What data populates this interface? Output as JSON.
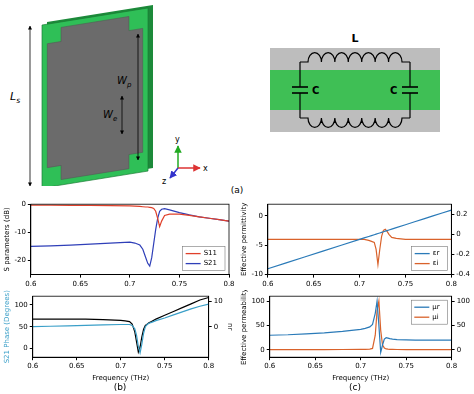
{
  "panels": {
    "a": "(a)",
    "b": "(b)",
    "c": "(c)"
  },
  "diagram": {
    "unit_cell": {
      "dimensions": [
        "Ls",
        "Wp",
        "We"
      ],
      "axes": [
        "y",
        "x",
        "z"
      ]
    },
    "circuit": {
      "inductor": "L",
      "capacitors": [
        "C",
        "C"
      ]
    }
  },
  "chart_data": [
    {
      "type": "line",
      "ylabel": "S parameters (dB)",
      "x": [
        0.6,
        0.62,
        0.64,
        0.66,
        0.68,
        0.7,
        0.705,
        0.71,
        0.713,
        0.716,
        0.718,
        0.72,
        0.722,
        0.724,
        0.726,
        0.728,
        0.73,
        0.732,
        0.735,
        0.74,
        0.75,
        0.76,
        0.77,
        0.78,
        0.79,
        0.8
      ],
      "xlim": [
        0.6,
        0.8
      ],
      "xticks": [
        0.6,
        0.65,
        0.7,
        0.75,
        0.8
      ],
      "ylim": [
        -25,
        0
      ],
      "yticks": [
        -20,
        -10,
        0
      ],
      "grid": false,
      "legend": "lower right",
      "series": [
        {
          "name": "S11",
          "color": "#e0402a",
          "values": [
            -0.3,
            -0.3,
            -0.4,
            -0.4,
            -0.5,
            -0.6,
            -0.7,
            -0.8,
            -0.9,
            -1.0,
            -1.0,
            -1.1,
            -1.2,
            -1.5,
            -2.5,
            -5,
            -8,
            -6,
            -4,
            -3.5,
            -3.5,
            -4,
            -4.5,
            -5,
            -5.5,
            -6
          ]
        },
        {
          "name": "S21",
          "color": "#2f3fb8",
          "values": [
            -15,
            -14.8,
            -14.5,
            -14.2,
            -13.8,
            -13.5,
            -13.8,
            -14.5,
            -16,
            -19,
            -21,
            -22,
            -19,
            -14,
            -9,
            -5,
            -2.5,
            -1.8,
            -1.6,
            -2,
            -3,
            -3.8,
            -4.5,
            -5,
            -5.5,
            -6
          ]
        }
      ]
    },
    {
      "type": "line",
      "xlabel": "Frequency (THz)",
      "ylabel": "S21 Phase (Degrees)",
      "y2label": "nr",
      "x": [
        0.6,
        0.62,
        0.64,
        0.66,
        0.68,
        0.7,
        0.705,
        0.71,
        0.713,
        0.716,
        0.718,
        0.72,
        0.722,
        0.724,
        0.726,
        0.728,
        0.73,
        0.732,
        0.735,
        0.74,
        0.75,
        0.76,
        0.77,
        0.78,
        0.79,
        0.8
      ],
      "xlim": [
        0.6,
        0.8
      ],
      "xticks": [
        0.6,
        0.65,
        0.7,
        0.75,
        0.8
      ],
      "ylim": [
        -20,
        120
      ],
      "yticks": [
        0,
        50,
        100
      ],
      "y2lim": [
        -12,
        12
      ],
      "y2ticks": [
        0,
        10
      ],
      "grid": false,
      "series": [
        {
          "color": "#3a9fc8",
          "values": [
            50,
            51,
            52,
            53,
            54,
            55,
            55,
            55,
            53,
            45,
            30,
            5,
            -10,
            10,
            35,
            50,
            55,
            58,
            60,
            64,
            70,
            77,
            84,
            91,
            97,
            102
          ]
        },
        {
          "color": "#000000",
          "axis": "y2",
          "values": [
            3,
            3,
            3,
            3,
            2.8,
            2.5,
            2.3,
            2,
            1,
            -2,
            -6,
            -10,
            -8,
            -4,
            -1,
            0.5,
            1,
            1.5,
            2,
            3,
            4.5,
            6,
            7.5,
            9,
            10.5,
            11.5
          ]
        }
      ]
    },
    {
      "type": "line",
      "ylabel": "Effective permittivity",
      "x": [
        0.6,
        0.62,
        0.64,
        0.66,
        0.68,
        0.7,
        0.705,
        0.71,
        0.713,
        0.716,
        0.718,
        0.72,
        0.722,
        0.724,
        0.726,
        0.728,
        0.73,
        0.732,
        0.735,
        0.74,
        0.75,
        0.76,
        0.77,
        0.78,
        0.79,
        0.8
      ],
      "xlim": [
        0.6,
        0.8
      ],
      "xticks": [
        0.6,
        0.65,
        0.7,
        0.75,
        0.8
      ],
      "ylim": [
        -10,
        2
      ],
      "yticks": [
        -10,
        -5,
        0
      ],
      "y2lim": [
        -0.4,
        0.3
      ],
      "y2ticks": [
        -0.4,
        -0.2,
        0,
        0.2
      ],
      "grid": false,
      "legend": "lower right",
      "series": [
        {
          "name": "εr",
          "color": "#2a7ab8",
          "values": [
            -9,
            -8,
            -7,
            -6,
            -5,
            -4,
            -3.75,
            -3.5,
            -3.35,
            -3.2,
            -3.1,
            -3,
            -2.9,
            -2.8,
            -2.7,
            -2.6,
            -2.5,
            -2.4,
            -2.25,
            -2,
            -1.5,
            -1,
            -0.5,
            0,
            0.5,
            1
          ]
        },
        {
          "name": "εi",
          "color": "#d9622b",
          "axis": "y2",
          "values": [
            -0.05,
            -0.05,
            -0.05,
            -0.05,
            -0.05,
            -0.05,
            -0.05,
            -0.06,
            -0.07,
            -0.08,
            -0.15,
            -0.3,
            -0.15,
            -0.02,
            0.04,
            0.05,
            0.03,
            0,
            -0.03,
            -0.04,
            -0.05,
            -0.05,
            -0.05,
            -0.05,
            -0.05,
            -0.05
          ]
        }
      ]
    },
    {
      "type": "line",
      "xlabel": "Frequency (THz)",
      "ylabel": "Effective permeability",
      "x": [
        0.6,
        0.62,
        0.64,
        0.66,
        0.68,
        0.7,
        0.705,
        0.71,
        0.713,
        0.716,
        0.718,
        0.72,
        0.722,
        0.724,
        0.726,
        0.728,
        0.73,
        0.732,
        0.735,
        0.74,
        0.75,
        0.76,
        0.77,
        0.78,
        0.79,
        0.8
      ],
      "xlim": [
        0.6,
        0.8
      ],
      "xticks": [
        0.6,
        0.65,
        0.7,
        0.75,
        0.8
      ],
      "ylim": [
        -15,
        110
      ],
      "yticks": [
        0,
        50,
        100
      ],
      "y2lim": [
        -15,
        110
      ],
      "y2ticks": [
        0,
        50,
        100
      ],
      "grid": false,
      "legend": "upper right",
      "series": [
        {
          "name": "μr",
          "color": "#2a7ab8",
          "values": [
            30,
            31,
            33,
            35,
            38,
            42,
            44,
            47,
            52,
            75,
            100,
            50,
            -5,
            10,
            22,
            25,
            24,
            23,
            22,
            21,
            20.5,
            20,
            20,
            20,
            20,
            20
          ]
        },
        {
          "name": "μi",
          "color": "#d9622b",
          "axis": "y2",
          "values": [
            0.5,
            0.5,
            0.6,
            0.7,
            0.8,
            1,
            1.2,
            1.5,
            3,
            30,
            80,
            100,
            40,
            10,
            4,
            2,
            1.5,
            1.2,
            1,
            0.8,
            0.6,
            0.5,
            0.5,
            0.5,
            0.5,
            0.5
          ]
        }
      ]
    }
  ]
}
